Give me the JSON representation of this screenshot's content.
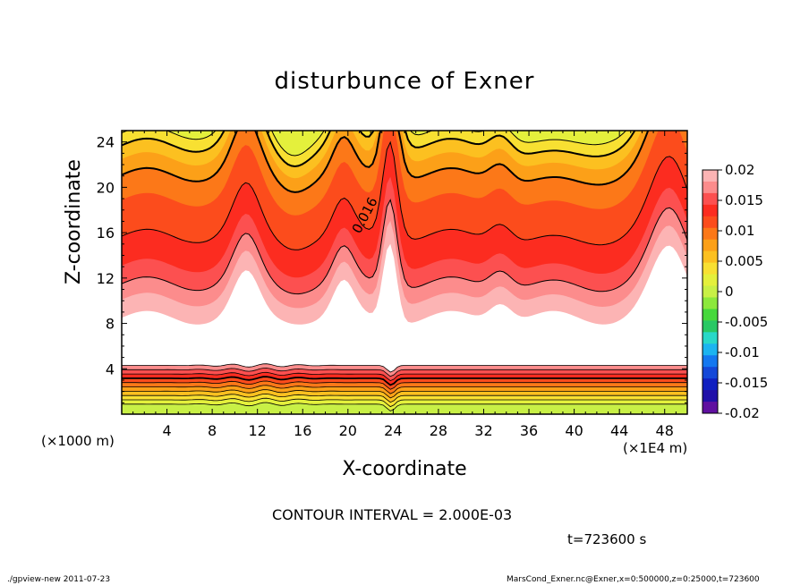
{
  "chart_data": {
    "type": "heatmap",
    "title": "disturbunce of Exner",
    "xlabel": "X-coordinate",
    "ylabel": "Z-coordinate",
    "x_unit_note": "(×1000 m)",
    "x_scale_note": "(×1E4 m)",
    "xlim": [
      0,
      50
    ],
    "ylim": [
      0,
      25
    ],
    "x_ticks": [
      4,
      8,
      12,
      16,
      20,
      24,
      28,
      32,
      36,
      40,
      44,
      48
    ],
    "y_ticks": [
      4,
      8,
      12,
      16,
      20,
      24
    ],
    "colorbar": {
      "ticks": [
        "0.02",
        "0.015",
        "0.01",
        "0.005",
        "0",
        "-0.005",
        "-0.01",
        "-0.015",
        "-0.02"
      ],
      "range": [
        -0.02,
        0.02
      ]
    },
    "contour_label": "0.016",
    "contour_interval": "CONTOUR INTERVAL = 2.000E-03",
    "time": "t=723600 s",
    "bands": [
      {
        "level": 0.0,
        "color": "#c8f046"
      },
      {
        "level": 0.002,
        "color": "#e4f03c"
      },
      {
        "level": 0.004,
        "color": "#f8e032"
      },
      {
        "level": 0.006,
        "color": "#fcc020"
      },
      {
        "level": 0.008,
        "color": "#fca018"
      },
      {
        "level": 0.01,
        "color": "#fc7818"
      },
      {
        "level": 0.012,
        "color": "#fc4c1c"
      },
      {
        "level": 0.014,
        "color": "#fc2c20"
      },
      {
        "level": 0.016,
        "color": "#fc5050"
      },
      {
        "level": 0.018,
        "color": "#fc8c8c"
      },
      {
        "level": 0.02,
        "color": "#fcb4b4"
      }
    ]
  },
  "footer": {
    "left": "./gpview-new   2011-07-23",
    "right": "MarsCond_Exner.nc@Exner,x=0:500000,z=0:25000,t=723600"
  }
}
